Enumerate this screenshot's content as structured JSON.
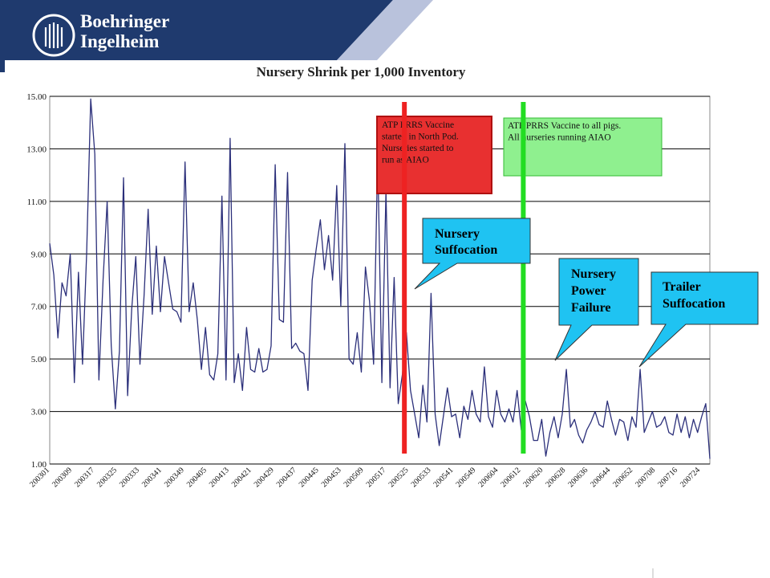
{
  "brand": {
    "line1": "Boehringer",
    "line2": "Ingelheim",
    "color": "#1f3a6e"
  },
  "chart_data": {
    "type": "line",
    "title": "Nursery Shrink per 1,000 Inventory",
    "ylim": [
      1,
      15
    ],
    "yticks": [
      "1.00",
      "3.00",
      "5.00",
      "7.00",
      "9.00",
      "11.00",
      "13.00",
      "15.00"
    ],
    "grid": true,
    "x_tick_labels": [
      "200301",
      "200309",
      "200317",
      "200325",
      "200333",
      "200341",
      "200349",
      "200405",
      "200413",
      "200421",
      "200429",
      "200437",
      "200445",
      "200453",
      "200509",
      "200517",
      "200525",
      "200533",
      "200541",
      "200549",
      "200604",
      "200612",
      "200620",
      "200628",
      "200636",
      "200644",
      "200652",
      "200708",
      "200716",
      "200724"
    ],
    "series": [
      {
        "color": "#2b2f7a",
        "values": [
          9.4,
          8.2,
          5.8,
          7.9,
          7.4,
          9.0,
          4.1,
          8.3,
          4.8,
          9.0,
          14.9,
          12.8,
          4.2,
          8.0,
          11.0,
          5.5,
          3.1,
          5.3,
          11.9,
          3.6,
          6.9,
          8.9,
          4.8,
          7.4,
          10.7,
          6.7,
          9.3,
          6.8,
          8.9,
          7.9,
          6.9,
          6.8,
          6.4,
          12.5,
          6.8,
          7.9,
          6.5,
          4.6,
          6.2,
          4.4,
          4.2,
          5.2,
          11.2,
          4.2,
          13.4,
          4.1,
          5.2,
          3.8,
          6.2,
          4.6,
          4.5,
          5.4,
          4.5,
          4.6,
          5.5,
          12.4,
          6.5,
          6.4,
          12.1,
          5.4,
          5.6,
          5.3,
          5.2,
          3.8,
          8.0,
          9.2,
          10.3,
          8.4,
          9.7,
          8.0,
          11.6,
          7.0,
          13.2,
          5.0,
          4.8,
          6.0,
          4.5,
          8.5,
          7.2,
          4.8,
          12.8,
          4.1,
          11.4,
          3.9,
          8.1,
          3.3,
          4.4,
          6.0,
          3.8,
          2.9,
          2.0,
          4.0,
          2.6,
          7.5,
          2.9,
          1.7,
          2.8,
          3.9,
          2.8,
          2.9,
          2.0,
          3.2,
          2.7,
          3.8,
          2.9,
          2.6,
          4.7,
          2.8,
          2.4,
          3.8,
          2.9,
          2.6,
          3.1,
          2.6,
          3.8,
          2.3,
          3.4,
          2.8,
          1.9,
          1.9,
          2.7,
          1.3,
          2.2,
          2.8,
          2.0,
          2.9,
          4.6,
          2.4,
          2.7,
          2.1,
          1.8,
          2.3,
          2.6,
          3.0,
          2.5,
          2.4,
          3.4,
          2.7,
          2.1,
          2.7,
          2.6,
          1.9,
          2.8,
          2.4,
          4.6,
          2.2,
          2.6,
          3.0,
          2.4,
          2.5,
          2.8,
          2.2,
          2.1,
          2.9,
          2.2,
          2.8,
          2.0,
          2.7,
          2.2,
          2.8,
          3.3,
          1.2
        ]
      }
    ],
    "vertical_lines": [
      {
        "x_index": 86.5,
        "color": "#ee2222"
      },
      {
        "x_index": 115.5,
        "color": "#22dd22"
      }
    ],
    "annotations": [
      {
        "id": "red-box",
        "lines": [
          "ATP PRRS Vaccine",
          "started in North Pod.",
          "Nurseries started to",
          "run as AIAO"
        ],
        "fill": "#e83030",
        "border": "#b01010"
      },
      {
        "id": "green-box",
        "lines": [
          "ATP PRRS Vaccine to all pigs.",
          "All nurseries running AIAO"
        ],
        "fill": "#8ff08f",
        "border": "#33bb33"
      },
      {
        "id": "callout-1",
        "lines": [
          "Nursery",
          "Suffocation"
        ],
        "fill": "#1fc3f2"
      },
      {
        "id": "callout-2",
        "lines": [
          "Nursery",
          "Power",
          "Failure"
        ],
        "fill": "#1fc3f2"
      },
      {
        "id": "callout-3",
        "lines": [
          "Trailer",
          "Suffocation"
        ],
        "fill": "#1fc3f2"
      }
    ]
  }
}
